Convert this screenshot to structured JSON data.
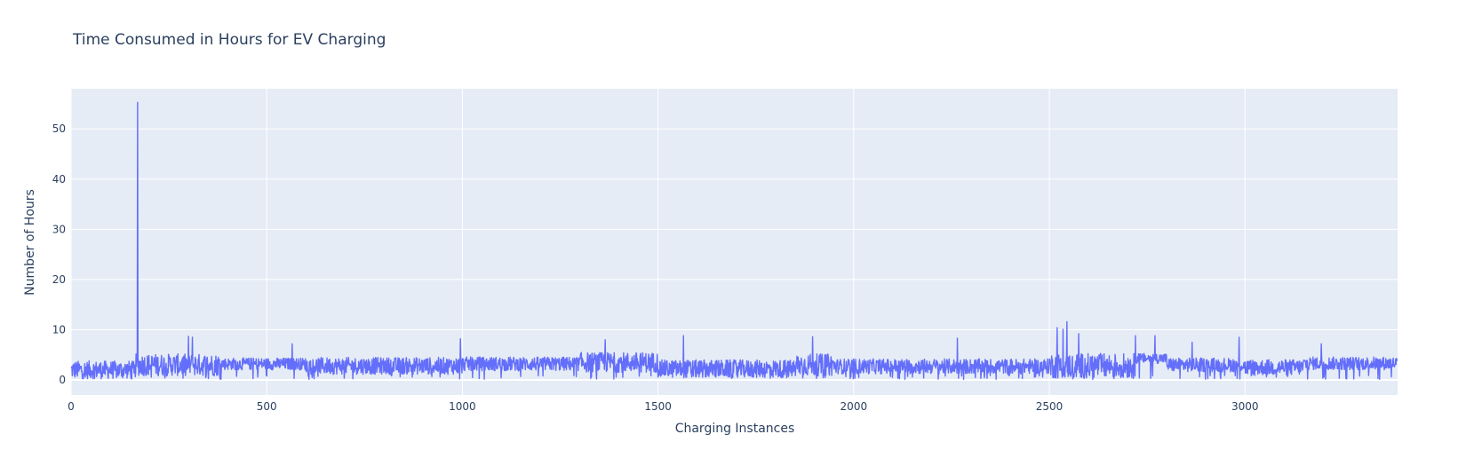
{
  "chart_data": {
    "type": "line",
    "title": "Time Consumed in Hours for EV Charging",
    "xlabel": "Charging Instances",
    "ylabel": "Number of Hours",
    "xlim": [
      0,
      3390
    ],
    "ylim": [
      -3,
      58
    ],
    "x_ticks": [
      0,
      500,
      1000,
      1500,
      2000,
      2500,
      3000
    ],
    "y_ticks": [
      0,
      10,
      20,
      30,
      40,
      50
    ],
    "grid": true,
    "legend": "none",
    "colors": {
      "line": "#636efa",
      "plot_bg": "#e5ecf6",
      "grid": "#ffffff",
      "text": "#2a3f5f"
    },
    "series": [
      {
        "n_points": 3390,
        "regimes": [
          {
            "range": [
              0,
              160
            ],
            "base": 2.0,
            "noise": 1.8
          },
          {
            "range": [
              160,
              380
            ],
            "base": 3.0,
            "noise": 2.2
          },
          {
            "range": [
              380,
              600
            ],
            "base": 3.2,
            "noise": 1.2
          },
          {
            "range": [
              600,
              1000
            ],
            "base": 2.8,
            "noise": 1.7
          },
          {
            "range": [
              1000,
              1300
            ],
            "base": 3.2,
            "noise": 1.4
          },
          {
            "range": [
              1300,
              1500
            ],
            "base": 3.5,
            "noise": 2.0
          },
          {
            "range": [
              1500,
              1850
            ],
            "base": 2.2,
            "noise": 1.8
          },
          {
            "range": [
              1850,
              1950
            ],
            "base": 3.0,
            "noise": 2.2
          },
          {
            "range": [
              1950,
              2500
            ],
            "base": 2.7,
            "noise": 1.5
          },
          {
            "range": [
              2500,
              2720
            ],
            "base": 2.8,
            "noise": 2.5
          },
          {
            "range": [
              2720,
              2800
            ],
            "base": 4.3,
            "noise": 1.0
          },
          {
            "range": [
              2800,
              3000
            ],
            "base": 3.0,
            "noise": 1.4
          },
          {
            "range": [
              3000,
              3150
            ],
            "base": 2.5,
            "noise": 1.6
          },
          {
            "range": [
              3150,
              3390
            ],
            "base": 3.3,
            "noise": 1.3
          }
        ],
        "spikes": [
          [
            170,
            55.3
          ],
          [
            300,
            8.7
          ],
          [
            310,
            8.5
          ],
          [
            565,
            7.2
          ],
          [
            995,
            8.2
          ],
          [
            1365,
            8.0
          ],
          [
            1565,
            8.8
          ],
          [
            1895,
            8.6
          ],
          [
            2265,
            8.3
          ],
          [
            2520,
            10.4
          ],
          [
            2535,
            10.1
          ],
          [
            2545,
            11.6
          ],
          [
            2575,
            9.2
          ],
          [
            2720,
            8.8
          ],
          [
            2770,
            8.8
          ],
          [
            2865,
            7.5
          ],
          [
            2985,
            8.5
          ],
          [
            3195,
            7.2
          ]
        ]
      }
    ]
  }
}
